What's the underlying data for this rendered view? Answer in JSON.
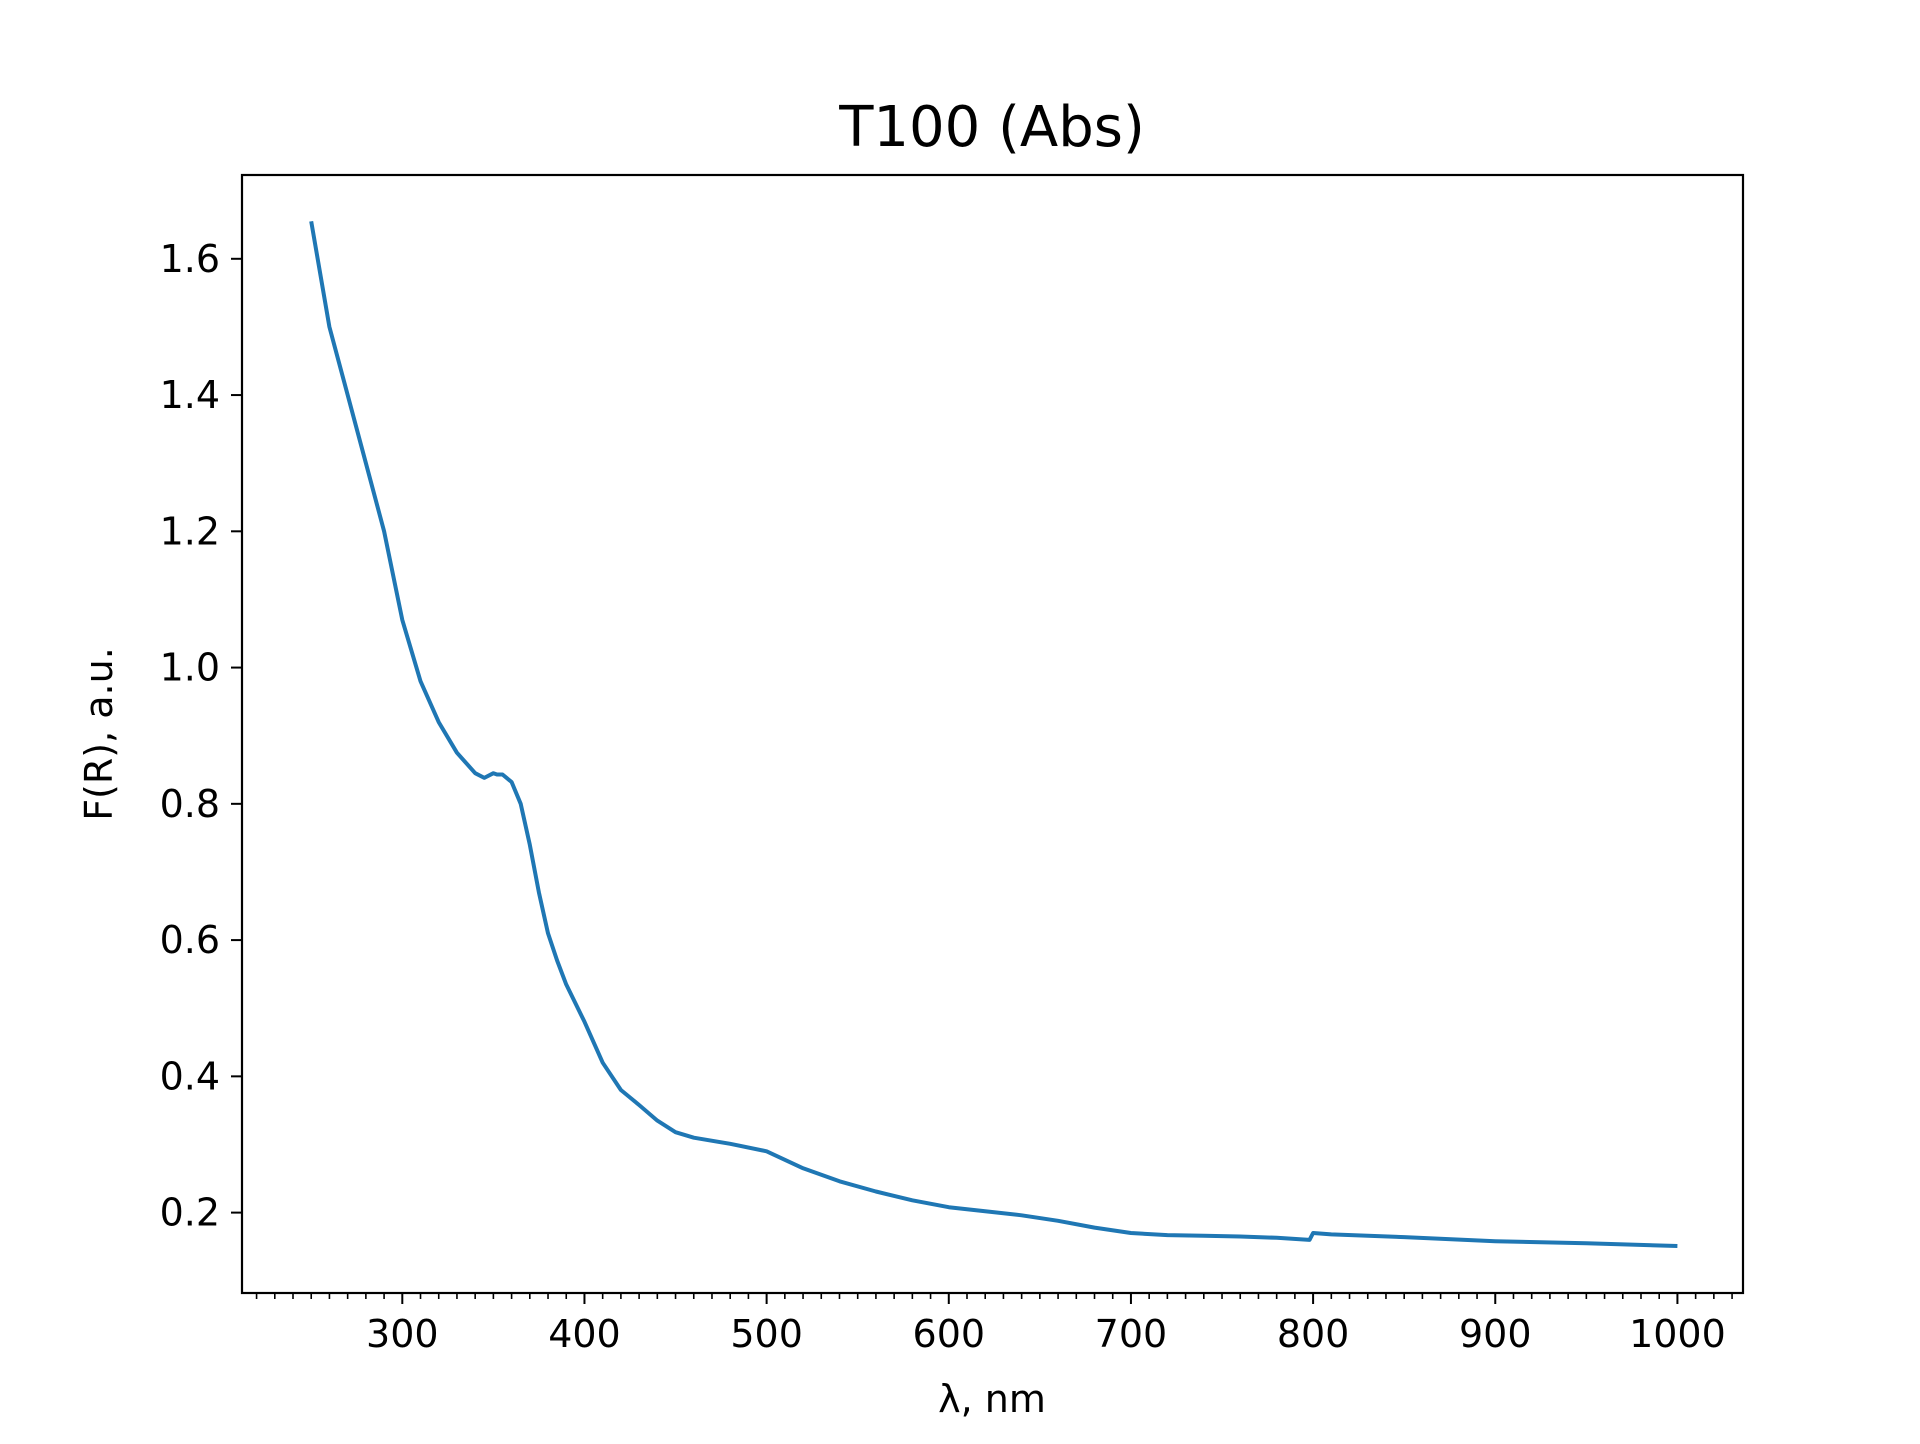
{
  "chart_data": {
    "type": "line",
    "title": "T100 (Abs)",
    "xlabel": "λ, nm",
    "ylabel": "F(R), a.u.",
    "xlim": [
      212,
      1036
    ],
    "ylim": [
      0.082,
      1.723
    ],
    "xticks": [
      300,
      400,
      500,
      600,
      700,
      800,
      900,
      1000
    ],
    "xtick_labels": [
      "300",
      "400",
      "500",
      "600",
      "700",
      "800",
      "900",
      "1000"
    ],
    "x_minor_step": 10,
    "yticks": [
      0.2,
      0.4,
      0.6,
      0.8,
      1.0,
      1.2,
      1.4,
      1.6
    ],
    "ytick_labels": [
      "0.2",
      "0.4",
      "0.6",
      "0.8",
      "1.0",
      "1.2",
      "1.4",
      "1.6"
    ],
    "grid": false,
    "line_color": "#1f77b4",
    "series": [
      {
        "x": [
          250,
          260,
          270,
          280,
          290,
          300,
          310,
          320,
          330,
          340,
          345,
          350,
          352,
          355,
          360,
          365,
          370,
          375,
          380,
          385,
          390,
          400,
          410,
          420,
          430,
          440,
          450,
          460,
          480,
          500,
          520,
          540,
          560,
          580,
          600,
          620,
          640,
          660,
          680,
          700,
          720,
          740,
          760,
          780,
          798,
          800,
          810,
          850,
          900,
          950,
          1000
        ],
        "y": [
          1.655,
          1.5,
          1.4,
          1.3,
          1.2,
          1.07,
          0.98,
          0.92,
          0.875,
          0.845,
          0.838,
          0.845,
          0.843,
          0.843,
          0.832,
          0.8,
          0.74,
          0.67,
          0.61,
          0.57,
          0.535,
          0.48,
          0.42,
          0.38,
          0.358,
          0.335,
          0.318,
          0.31,
          0.301,
          0.29,
          0.265,
          0.246,
          0.231,
          0.218,
          0.208,
          0.202,
          0.196,
          0.188,
          0.178,
          0.17,
          0.167,
          0.166,
          0.165,
          0.163,
          0.16,
          0.17,
          0.168,
          0.164,
          0.158,
          0.155,
          0.151
        ]
      }
    ]
  }
}
